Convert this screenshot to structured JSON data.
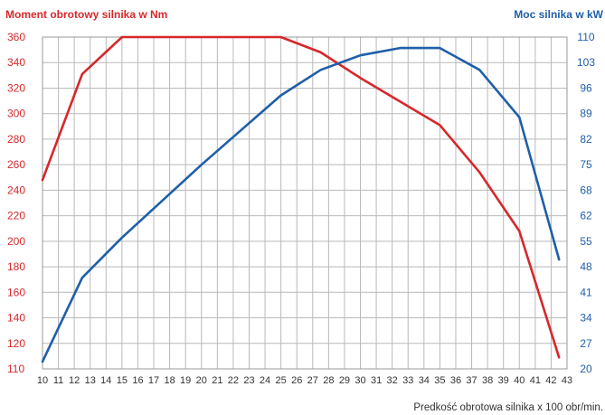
{
  "chart_data": {
    "type": "line",
    "left_axis_title": "Moment obrotowy silnika w Nm",
    "right_axis_title": "Moc silnika w kW",
    "xlabel": "Predkość obrotowa silnika x 100 obr/min.",
    "x_ticks": [
      "10",
      "11",
      "12",
      "13",
      "14",
      "15",
      "16",
      "17",
      "18",
      "19",
      "20",
      "21",
      "22",
      "23",
      "24",
      "25",
      "26",
      "27",
      "28",
      "29",
      "30",
      "31",
      "32",
      "33",
      "34",
      "35",
      "36",
      "37",
      "38",
      "39",
      "40",
      "41",
      "42",
      "43"
    ],
    "xlim": [
      10,
      43
    ],
    "left_ticks": [
      "360",
      "340",
      "320",
      "300",
      "280",
      "260",
      "240",
      "220",
      "200",
      "180",
      "160",
      "140",
      "120",
      "110"
    ],
    "right_ticks": [
      "110",
      "103",
      "96",
      "89",
      "82",
      "75",
      "68",
      "62",
      "55",
      "48",
      "41",
      "34",
      "27",
      "20"
    ],
    "grid": true,
    "colors": {
      "torque": "#d6282b",
      "power": "#1f5fa8"
    },
    "series": [
      {
        "key": "torque",
        "axis": "left",
        "x": [
          10,
          12.5,
          15,
          20,
          25,
          27.5,
          30,
          35,
          37.5,
          40,
          42.5
        ],
        "y": [
          248,
          331,
          360,
          360,
          360,
          348,
          328,
          291,
          254,
          208,
          109
        ]
      },
      {
        "key": "power",
        "axis": "right",
        "x": [
          10,
          12.5,
          15,
          20,
          25,
          27.5,
          30,
          32.5,
          35,
          37.5,
          40,
          42.5
        ],
        "y": [
          21,
          44,
          55,
          75,
          94,
          101,
          105,
          107,
          107,
          101,
          88,
          49
        ]
      }
    ]
  }
}
